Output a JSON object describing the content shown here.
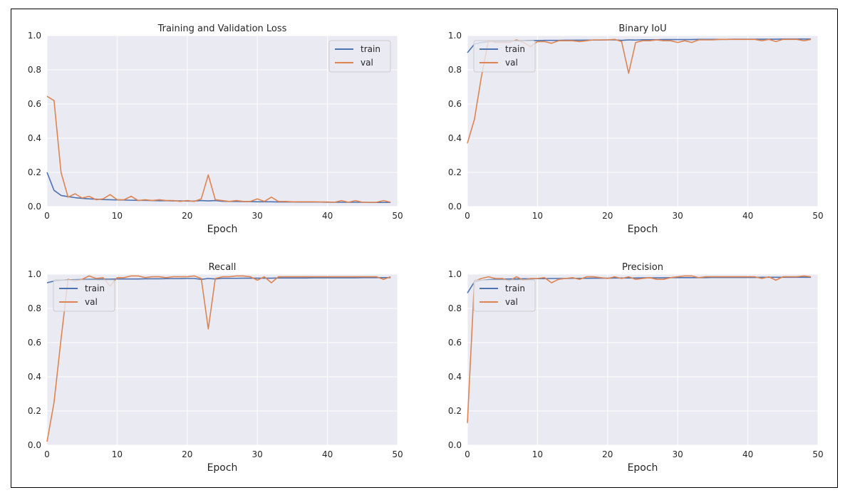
{
  "chart_data": [
    {
      "type": "line",
      "title": "Training and Validation Loss",
      "xlabel": "Epoch",
      "ylabel": "",
      "xlim": [
        0,
        50
      ],
      "ylim": [
        0,
        1.0
      ],
      "xticks": [
        0,
        10,
        20,
        30,
        40,
        50
      ],
      "yticks": [
        0.0,
        0.2,
        0.4,
        0.6,
        0.8,
        1.0
      ],
      "ytick_labels": [
        "0.0",
        "0.2",
        "0.4",
        "0.6",
        "0.8",
        "1.0"
      ],
      "grid": true,
      "legend": "top-right",
      "x": [
        0,
        1,
        2,
        3,
        4,
        5,
        6,
        7,
        8,
        9,
        10,
        11,
        12,
        13,
        14,
        15,
        16,
        17,
        18,
        19,
        20,
        21,
        22,
        23,
        24,
        25,
        26,
        27,
        28,
        29,
        30,
        31,
        32,
        33,
        34,
        35,
        36,
        37,
        38,
        39,
        40,
        41,
        42,
        43,
        44,
        45,
        46,
        47,
        48,
        49
      ],
      "series": [
        {
          "name": "train",
          "color": "#4c72b0",
          "values": [
            0.2,
            0.095,
            0.065,
            0.058,
            0.052,
            0.048,
            0.045,
            0.043,
            0.041,
            0.04,
            0.039,
            0.038,
            0.037,
            0.036,
            0.036,
            0.035,
            0.034,
            0.034,
            0.033,
            0.033,
            0.032,
            0.032,
            0.035,
            0.033,
            0.035,
            0.031,
            0.03,
            0.03,
            0.029,
            0.029,
            0.028,
            0.028,
            0.028,
            0.027,
            0.027,
            0.027,
            0.026,
            0.026,
            0.026,
            0.026,
            0.025,
            0.025,
            0.025,
            0.025,
            0.025,
            0.025,
            0.024,
            0.024,
            0.024,
            0.024
          ]
        },
        {
          "name": "val",
          "color": "#dd8452",
          "values": [
            0.645,
            0.62,
            0.2,
            0.055,
            0.075,
            0.05,
            0.06,
            0.04,
            0.045,
            0.07,
            0.04,
            0.04,
            0.06,
            0.035,
            0.04,
            0.035,
            0.04,
            0.035,
            0.035,
            0.03,
            0.035,
            0.03,
            0.045,
            0.185,
            0.04,
            0.035,
            0.03,
            0.035,
            0.03,
            0.03,
            0.045,
            0.03,
            0.055,
            0.03,
            0.03,
            0.028,
            0.028,
            0.028,
            0.028,
            0.027,
            0.027,
            0.025,
            0.035,
            0.025,
            0.035,
            0.025,
            0.025,
            0.025,
            0.035,
            0.025
          ]
        }
      ]
    },
    {
      "type": "line",
      "title": "Binary IoU",
      "xlabel": "Epoch",
      "ylabel": "",
      "xlim": [
        0,
        50
      ],
      "ylim": [
        0,
        1.0
      ],
      "xticks": [
        0,
        10,
        20,
        30,
        40,
        50
      ],
      "yticks": [
        0.0,
        0.2,
        0.4,
        0.6,
        0.8,
        1.0
      ],
      "ytick_labels": [
        "0.0",
        "0.2",
        "0.4",
        "0.6",
        "0.8",
        "1.0"
      ],
      "grid": true,
      "legend": "top-left",
      "x": [
        0,
        1,
        2,
        3,
        4,
        5,
        6,
        7,
        8,
        9,
        10,
        11,
        12,
        13,
        14,
        15,
        16,
        17,
        18,
        19,
        20,
        21,
        22,
        23,
        24,
        25,
        26,
        27,
        28,
        29,
        30,
        31,
        32,
        33,
        34,
        35,
        36,
        37,
        38,
        39,
        40,
        41,
        42,
        43,
        44,
        45,
        46,
        47,
        48,
        49
      ],
      "series": [
        {
          "name": "train",
          "color": "#4c72b0",
          "values": [
            0.9,
            0.95,
            0.96,
            0.965,
            0.967,
            0.968,
            0.969,
            0.97,
            0.97,
            0.971,
            0.971,
            0.972,
            0.972,
            0.972,
            0.973,
            0.973,
            0.973,
            0.974,
            0.974,
            0.974,
            0.975,
            0.975,
            0.972,
            0.975,
            0.974,
            0.976,
            0.976,
            0.976,
            0.977,
            0.977,
            0.977,
            0.977,
            0.977,
            0.978,
            0.978,
            0.978,
            0.978,
            0.978,
            0.979,
            0.979,
            0.979,
            0.979,
            0.979,
            0.979,
            0.979,
            0.98,
            0.98,
            0.98,
            0.98,
            0.98
          ]
        },
        {
          "name": "val",
          "color": "#dd8452",
          "values": [
            0.37,
            0.51,
            0.76,
            0.97,
            0.96,
            0.96,
            0.96,
            0.975,
            0.96,
            0.935,
            0.965,
            0.965,
            0.955,
            0.97,
            0.97,
            0.97,
            0.965,
            0.97,
            0.975,
            0.975,
            0.975,
            0.978,
            0.965,
            0.78,
            0.96,
            0.97,
            0.97,
            0.975,
            0.97,
            0.97,
            0.96,
            0.97,
            0.96,
            0.975,
            0.975,
            0.975,
            0.978,
            0.978,
            0.978,
            0.978,
            0.978,
            0.978,
            0.97,
            0.978,
            0.965,
            0.978,
            0.978,
            0.978,
            0.97,
            0.978
          ]
        }
      ]
    },
    {
      "type": "line",
      "title": "Recall",
      "xlabel": "Epoch",
      "ylabel": "",
      "xlim": [
        0,
        50
      ],
      "ylim": [
        0,
        1.0
      ],
      "xticks": [
        0,
        10,
        20,
        30,
        40,
        50
      ],
      "yticks": [
        0.0,
        0.2,
        0.4,
        0.6,
        0.8,
        1.0
      ],
      "ytick_labels": [
        "0.0",
        "0.2",
        "0.4",
        "0.6",
        "0.8",
        "1.0"
      ],
      "grid": true,
      "legend": "top-left",
      "x": [
        0,
        1,
        2,
        3,
        4,
        5,
        6,
        7,
        8,
        9,
        10,
        11,
        12,
        13,
        14,
        15,
        16,
        17,
        18,
        19,
        20,
        21,
        22,
        23,
        24,
        25,
        26,
        27,
        28,
        29,
        30,
        31,
        32,
        33,
        34,
        35,
        36,
        37,
        38,
        39,
        40,
        41,
        42,
        43,
        44,
        45,
        46,
        47,
        48,
        49
      ],
      "series": [
        {
          "name": "train",
          "color": "#4c72b0",
          "values": [
            0.95,
            0.96,
            0.965,
            0.967,
            0.968,
            0.969,
            0.97,
            0.97,
            0.971,
            0.971,
            0.972,
            0.972,
            0.972,
            0.972,
            0.973,
            0.973,
            0.973,
            0.974,
            0.974,
            0.974,
            0.975,
            0.975,
            0.97,
            0.975,
            0.972,
            0.976,
            0.976,
            0.976,
            0.977,
            0.977,
            0.977,
            0.977,
            0.977,
            0.978,
            0.978,
            0.978,
            0.978,
            0.978,
            0.979,
            0.979,
            0.979,
            0.979,
            0.979,
            0.979,
            0.979,
            0.98,
            0.98,
            0.98,
            0.98,
            0.98
          ]
        },
        {
          "name": "val",
          "color": "#dd8452",
          "values": [
            0.02,
            0.25,
            0.62,
            0.97,
            0.96,
            0.97,
            0.99,
            0.975,
            0.98,
            0.93,
            0.98,
            0.98,
            0.99,
            0.99,
            0.98,
            0.985,
            0.985,
            0.98,
            0.985,
            0.985,
            0.985,
            0.99,
            0.975,
            0.68,
            0.975,
            0.985,
            0.985,
            0.99,
            0.99,
            0.985,
            0.965,
            0.985,
            0.95,
            0.985,
            0.985,
            0.985,
            0.985,
            0.985,
            0.985,
            0.985,
            0.985,
            0.985,
            0.985,
            0.985,
            0.985,
            0.985,
            0.985,
            0.985,
            0.97,
            0.985
          ]
        }
      ]
    },
    {
      "type": "line",
      "title": "Precision",
      "xlabel": "Epoch",
      "ylabel": "",
      "xlim": [
        0,
        50
      ],
      "ylim": [
        0,
        1.0
      ],
      "xticks": [
        0,
        10,
        20,
        30,
        40,
        50
      ],
      "yticks": [
        0.0,
        0.2,
        0.4,
        0.6,
        0.8,
        1.0
      ],
      "ytick_labels": [
        "0.0",
        "0.2",
        "0.4",
        "0.6",
        "0.8",
        "1.0"
      ],
      "grid": true,
      "legend": "top-left",
      "x": [
        0,
        1,
        2,
        3,
        4,
        5,
        6,
        7,
        8,
        9,
        10,
        11,
        12,
        13,
        14,
        15,
        16,
        17,
        18,
        19,
        20,
        21,
        22,
        23,
        24,
        25,
        26,
        27,
        28,
        29,
        30,
        31,
        32,
        33,
        34,
        35,
        36,
        37,
        38,
        39,
        40,
        41,
        42,
        43,
        44,
        45,
        46,
        47,
        48,
        49
      ],
      "series": [
        {
          "name": "train",
          "color": "#4c72b0",
          "values": [
            0.89,
            0.955,
            0.965,
            0.968,
            0.97,
            0.971,
            0.972,
            0.972,
            0.973,
            0.973,
            0.974,
            0.974,
            0.975,
            0.975,
            0.975,
            0.976,
            0.976,
            0.976,
            0.977,
            0.977,
            0.977,
            0.978,
            0.978,
            0.978,
            0.978,
            0.979,
            0.979,
            0.979,
            0.979,
            0.98,
            0.98,
            0.98,
            0.98,
            0.98,
            0.98,
            0.981,
            0.981,
            0.981,
            0.981,
            0.981,
            0.981,
            0.981,
            0.982,
            0.982,
            0.982,
            0.982,
            0.982,
            0.982,
            0.982,
            0.982
          ]
        },
        {
          "name": "val",
          "color": "#dd8452",
          "values": [
            0.13,
            0.96,
            0.975,
            0.985,
            0.975,
            0.975,
            0.96,
            0.985,
            0.965,
            0.975,
            0.975,
            0.98,
            0.95,
            0.97,
            0.975,
            0.98,
            0.97,
            0.985,
            0.985,
            0.98,
            0.975,
            0.985,
            0.975,
            0.985,
            0.97,
            0.975,
            0.98,
            0.97,
            0.97,
            0.98,
            0.985,
            0.99,
            0.99,
            0.98,
            0.985,
            0.985,
            0.985,
            0.985,
            0.985,
            0.985,
            0.985,
            0.985,
            0.975,
            0.985,
            0.965,
            0.985,
            0.985,
            0.985,
            0.99,
            0.985
          ]
        }
      ]
    }
  ]
}
